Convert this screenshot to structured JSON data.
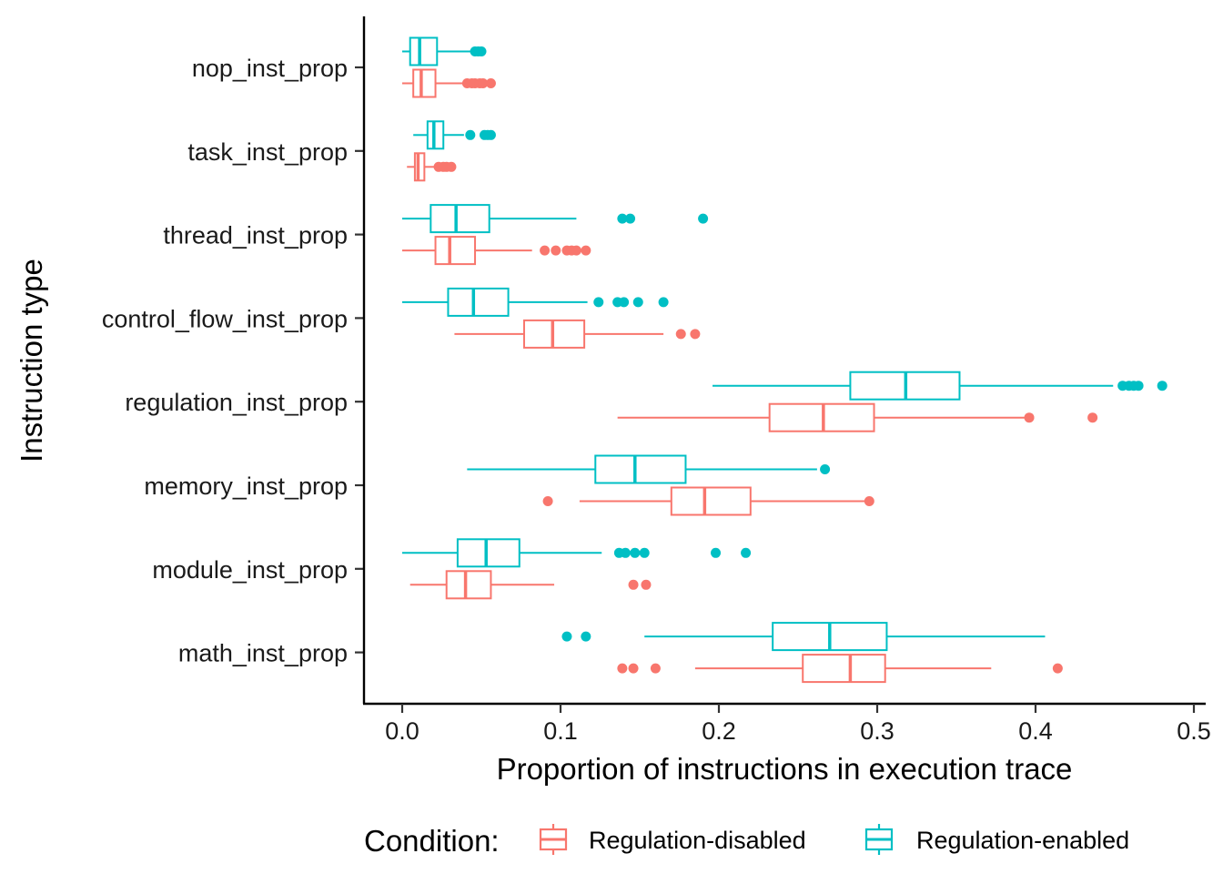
{
  "chart_data": {
    "type": "boxplot",
    "orientation": "horizontal",
    "title": "",
    "xlabel": "Proportion of instructions in execution trace",
    "ylabel": "Instruction type",
    "xlim": [
      -0.024,
      0.5
    ],
    "xticks": [
      0.0,
      0.1,
      0.2,
      0.3,
      0.4,
      0.5
    ],
    "xtick_labels": [
      "0.0",
      "0.1",
      "0.2",
      "0.3",
      "0.4",
      "0.5"
    ],
    "grid": false,
    "legend": {
      "title": "Condition:",
      "position": "bottom",
      "entries": [
        "Regulation-disabled",
        "Regulation-enabled"
      ]
    },
    "categories": [
      "nop_inst_prop",
      "task_inst_prop",
      "thread_inst_prop",
      "control_flow_inst_prop",
      "regulation_inst_prop",
      "memory_inst_prop",
      "module_inst_prop",
      "math_inst_prop"
    ],
    "series": [
      {
        "name": "Regulation-disabled",
        "color": "#F8766D",
        "boxes": [
          {
            "whisker_low": 0.0,
            "q1": 0.007,
            "median": 0.012,
            "q3": 0.021,
            "whisker_high": 0.04,
            "outliers": [
              0.041,
              0.044,
              0.046,
              0.049,
              0.051,
              0.056
            ]
          },
          {
            "whisker_low": 0.003,
            "q1": 0.008,
            "median": 0.01,
            "q3": 0.014,
            "whisker_high": 0.022,
            "outliers": [
              0.023,
              0.026,
              0.028,
              0.031
            ]
          },
          {
            "whisker_low": 0.0,
            "q1": 0.021,
            "median": 0.03,
            "q3": 0.046,
            "whisker_high": 0.082,
            "outliers": [
              0.09,
              0.097,
              0.104,
              0.107,
              0.11,
              0.116
            ]
          },
          {
            "whisker_low": 0.033,
            "q1": 0.077,
            "median": 0.095,
            "q3": 0.115,
            "whisker_high": 0.165,
            "outliers": [
              0.176,
              0.185
            ]
          },
          {
            "whisker_low": 0.136,
            "q1": 0.232,
            "median": 0.266,
            "q3": 0.298,
            "whisker_high": 0.394,
            "outliers": [
              0.396,
              0.436
            ]
          },
          {
            "whisker_low": 0.112,
            "q1": 0.17,
            "median": 0.191,
            "q3": 0.22,
            "whisker_high": 0.293,
            "outliers": [
              0.092,
              0.295
            ]
          },
          {
            "whisker_low": 0.005,
            "q1": 0.028,
            "median": 0.04,
            "q3": 0.056,
            "whisker_high": 0.096,
            "outliers": [
              0.146,
              0.154
            ]
          },
          {
            "whisker_low": 0.185,
            "q1": 0.253,
            "median": 0.283,
            "q3": 0.305,
            "whisker_high": 0.372,
            "outliers": [
              0.139,
              0.146,
              0.16,
              0.414
            ]
          }
        ]
      },
      {
        "name": "Regulation-enabled",
        "color": "#00BFC4",
        "boxes": [
          {
            "whisker_low": 0.0,
            "q1": 0.005,
            "median": 0.011,
            "q3": 0.022,
            "whisker_high": 0.044,
            "outliers": [
              0.046,
              0.048,
              0.05
            ]
          },
          {
            "whisker_low": 0.007,
            "q1": 0.016,
            "median": 0.02,
            "q3": 0.026,
            "whisker_high": 0.039,
            "outliers": [
              0.043,
              0.052,
              0.054,
              0.056
            ]
          },
          {
            "whisker_low": 0.0,
            "q1": 0.018,
            "median": 0.034,
            "q3": 0.055,
            "whisker_high": 0.11,
            "outliers": [
              0.139,
              0.144,
              0.19
            ]
          },
          {
            "whisker_low": 0.0,
            "q1": 0.029,
            "median": 0.045,
            "q3": 0.067,
            "whisker_high": 0.117,
            "outliers": [
              0.124,
              0.136,
              0.14,
              0.149,
              0.165
            ]
          },
          {
            "whisker_low": 0.196,
            "q1": 0.283,
            "median": 0.318,
            "q3": 0.352,
            "whisker_high": 0.449,
            "outliers": [
              0.455,
              0.459,
              0.462,
              0.465,
              0.48
            ]
          },
          {
            "whisker_low": 0.041,
            "q1": 0.122,
            "median": 0.147,
            "q3": 0.179,
            "whisker_high": 0.262,
            "outliers": [
              0.267
            ]
          },
          {
            "whisker_low": 0.0,
            "q1": 0.035,
            "median": 0.053,
            "q3": 0.074,
            "whisker_high": 0.126,
            "outliers": [
              0.137,
              0.141,
              0.147,
              0.153,
              0.198,
              0.217
            ]
          },
          {
            "whisker_low": 0.153,
            "q1": 0.234,
            "median": 0.27,
            "q3": 0.306,
            "whisker_high": 0.406,
            "outliers": [
              0.104,
              0.116
            ]
          }
        ]
      }
    ]
  }
}
